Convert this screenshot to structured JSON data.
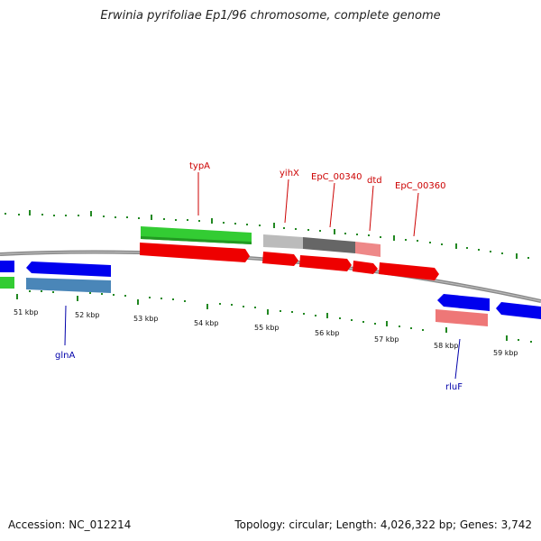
{
  "title": "Erwinia pyrifoliae Ep1/96 chromosome, complete genome",
  "footer": {
    "accession": "Accession: NC_012214",
    "summary": "Topology: circular; Length: 4,026,322 bp; Genes: 3,742"
  },
  "ticks": [
    "51 kbp",
    "52 kbp",
    "53 kbp",
    "54 kbp",
    "55 kbp",
    "56 kbp",
    "57 kbp",
    "58 kbp",
    "59 kbp"
  ],
  "gene_labels_top": [
    "typA",
    "yihX",
    "EpC_00340",
    "dtd",
    "EpC_00360"
  ],
  "gene_labels_bottom": [
    "glnA",
    "rluF"
  ],
  "colors": {
    "green": "#33cc33",
    "red": "#ee0000",
    "blue": "#0000ee",
    "steelblue": "#4a86b8",
    "pink": "#ee7777",
    "gray_light": "#bbbbbb",
    "gray_dark": "#666666",
    "tick_green": "#228822",
    "label_red": "#cc0000",
    "label_blue": "#0000aa"
  }
}
